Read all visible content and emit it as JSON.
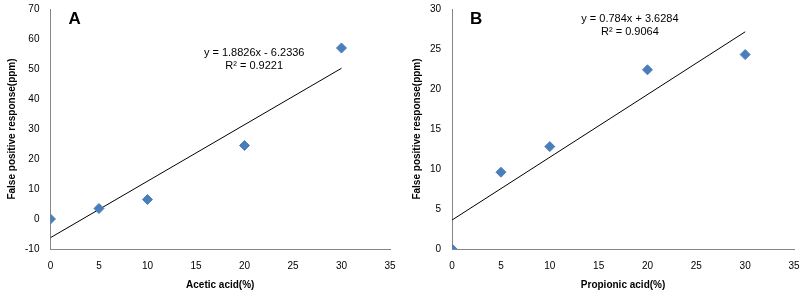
{
  "chart_data": [
    {
      "type": "scatter",
      "title": "A",
      "x": [
        0,
        5,
        10,
        20,
        30
      ],
      "values": [
        0,
        3.5,
        6.5,
        24.5,
        57
      ],
      "color": "#4a7ebb",
      "marker": "diamond",
      "x_label": "Acetic acid(%)",
      "y_label": "False positive response(ppm)",
      "xlim": [
        0,
        35
      ],
      "xticks": [
        0,
        5,
        10,
        15,
        20,
        25,
        30,
        35
      ],
      "ylim": [
        -10,
        70
      ],
      "yticks": [
        -10,
        0,
        10,
        20,
        30,
        40,
        50,
        60,
        70
      ],
      "grid": false,
      "trendline": {
        "slope": 1.8826,
        "intercept": -6.2336,
        "color": "#000000",
        "line_style": "solid"
      },
      "annotations": [
        "y = 1.8826x - 6.2336",
        "R² = 0.9221"
      ]
    },
    {
      "type": "scatter",
      "title": "B",
      "x": [
        0,
        5,
        10,
        20,
        30
      ],
      "values": [
        0,
        9.6,
        12.8,
        22.4,
        24.3
      ],
      "color": "#4a7ebb",
      "marker": "diamond",
      "x_label": "Propionic acid(%)",
      "y_label": "False positive response(ppm)",
      "xlim": [
        0,
        35
      ],
      "xticks": [
        0,
        5,
        10,
        15,
        20,
        25,
        30,
        35
      ],
      "ylim": [
        0,
        30
      ],
      "yticks": [
        0,
        5,
        10,
        15,
        20,
        25,
        30
      ],
      "grid": false,
      "trendline": {
        "slope": 0.784,
        "intercept": 3.6284,
        "color": "#000000",
        "line_style": "solid"
      },
      "annotations": [
        "y = 0.784x + 3.6284",
        "R² = 0.9064"
      ]
    }
  ]
}
